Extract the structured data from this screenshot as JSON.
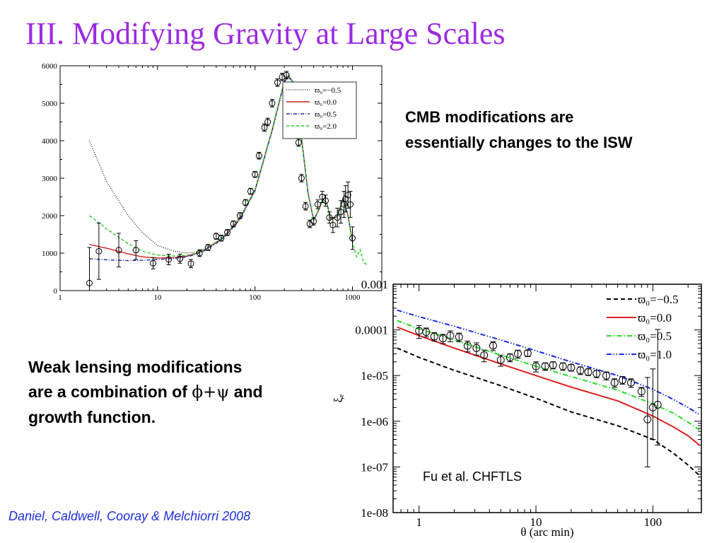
{
  "slide": {
    "title": "III. Modifying Gravity at Large Scales",
    "cmb_text": [
      "CMB modifications are",
      "essentially changes to the ISW"
    ],
    "wl_text": {
      "line1": "Weak lensing modifications",
      "line2_pre": "are a combination of ",
      "line2_sym": "ϕ+ψ",
      "line2_post": "  and",
      "line3": "growth function."
    },
    "citation": "Daniel, Caldwell, Cooray & Melchiorri 2008",
    "fu_label": "Fu et al. CHFTLS"
  },
  "chart_data": [
    {
      "type": "line",
      "xscale": "log",
      "xlim": [
        1,
        2000
      ],
      "ylim": [
        0,
        6000
      ],
      "x_ticks": [
        1,
        10,
        100,
        1000
      ],
      "x_tick_labels": [
        "1",
        "10",
        "100",
        "1000"
      ],
      "y_ticks": [
        0,
        1000,
        2000,
        3000,
        4000,
        5000,
        6000
      ],
      "y_tick_labels": [
        "0",
        "1000",
        "2000",
        "3000",
        "4000",
        "5000",
        "6000"
      ],
      "legend_position": "top-right",
      "series": [
        {
          "name": "ϖ₀=−0.5",
          "style": "dotted",
          "color": "#000000",
          "x": [
            2,
            3,
            5,
            7,
            10,
            15,
            20,
            25,
            30,
            40,
            50,
            70,
            100,
            150,
            200,
            220,
            250,
            300,
            350,
            400,
            450,
            500,
            550,
            600,
            700,
            800,
            900,
            1000
          ],
          "y": [
            4000,
            2900,
            2000,
            1550,
            1200,
            1050,
            1000,
            1030,
            1100,
            1300,
            1500,
            1950,
            2700,
            4300,
            5600,
            5750,
            5550,
            4100,
            2600,
            1900,
            2150,
            2450,
            2300,
            1900,
            2000,
            2450,
            2000,
            1300
          ]
        },
        {
          "name": "ϖ₀=0.0",
          "style": "solid",
          "color": "#cc1f1f",
          "x": [
            2,
            3,
            5,
            7,
            10,
            15,
            20,
            25,
            30,
            40,
            50,
            70,
            100,
            150,
            200,
            220,
            250,
            300,
            350,
            400,
            450,
            500,
            550,
            600,
            700,
            800,
            900,
            1000
          ],
          "y": [
            1230,
            1130,
            980,
            900,
            870,
            880,
            920,
            990,
            1080,
            1280,
            1480,
            1920,
            2680,
            4280,
            5580,
            5730,
            5530,
            4080,
            2600,
            1880,
            2150,
            2450,
            2300,
            1900,
            1980,
            2450,
            2000,
            1300
          ]
        },
        {
          "name": "ϖ₀=0.5",
          "style": "dashdot",
          "color": "#1a2bb0",
          "x": [
            2,
            3,
            5,
            7,
            10,
            15,
            20,
            25,
            30,
            40,
            50,
            70,
            100,
            150,
            200,
            220,
            250,
            300,
            350,
            400,
            450,
            500,
            550,
            600,
            700,
            800,
            900,
            1000
          ],
          "y": [
            850,
            820,
            800,
            810,
            830,
            860,
            900,
            970,
            1060,
            1260,
            1460,
            1900,
            2660,
            4260,
            5560,
            5710,
            5510,
            4060,
            2590,
            1870,
            2150,
            2450,
            2300,
            1900,
            1980,
            2450,
            2000,
            1300
          ]
        },
        {
          "name": "ϖ₀=2.0",
          "style": "dashed",
          "color": "#22cc22",
          "x": [
            2,
            3,
            5,
            7,
            10,
            15,
            20,
            25,
            30,
            40,
            50,
            70,
            100,
            150,
            200,
            220,
            250,
            300,
            350,
            400,
            450,
            500,
            550,
            600,
            700,
            800,
            900,
            1000,
            1100,
            1200,
            1300,
            1400
          ],
          "y": [
            2000,
            1650,
            1250,
            1050,
            950,
            920,
            940,
            1000,
            1090,
            1290,
            1490,
            1930,
            2690,
            4290,
            5590,
            5740,
            5540,
            4090,
            2610,
            1890,
            2160,
            2460,
            2310,
            1910,
            1990,
            2460,
            2010,
            1310,
            900,
            1100,
            750,
            700
          ]
        }
      ],
      "data_points": {
        "x": [
          2,
          2.5,
          4,
          6,
          9,
          13,
          17,
          22,
          27,
          33,
          40,
          45,
          52,
          60,
          70,
          80,
          90,
          100,
          110,
          125,
          135,
          150,
          170,
          190,
          210,
          230,
          250,
          280,
          300,
          330,
          365,
          400,
          440,
          490,
          530,
          580,
          630,
          700,
          760,
          820,
          850,
          900,
          950,
          1000
        ],
        "y": [
          200,
          1050,
          1080,
          1080,
          730,
          830,
          850,
          720,
          1000,
          1150,
          1450,
          1400,
          1550,
          1780,
          2000,
          2350,
          2650,
          3100,
          3600,
          4350,
          4500,
          5000,
          5550,
          5700,
          5750,
          5450,
          4850,
          3950,
          3000,
          2250,
          1780,
          1850,
          2300,
          2500,
          2400,
          1950,
          1750,
          1950,
          2100,
          2300,
          2450,
          2550,
          2300,
          1400
        ],
        "err": [
          950,
          750,
          450,
          250,
          150,
          140,
          120,
          110,
          90,
          80,
          80,
          80,
          80,
          80,
          80,
          80,
          80,
          80,
          90,
          100,
          100,
          100,
          100,
          100,
          100,
          100,
          100,
          100,
          100,
          100,
          100,
          100,
          120,
          150,
          150,
          150,
          200,
          250,
          300,
          350,
          350,
          350,
          350,
          300
        ]
      }
    },
    {
      "type": "line",
      "xscale": "log",
      "yscale": "log",
      "xlim": [
        0.6,
        260
      ],
      "ylim": [
        1e-08,
        0.001
      ],
      "xlabel": "θ (arc min)",
      "ylabel": "ξₑ",
      "x_ticks": [
        1,
        10,
        100
      ],
      "x_tick_labels": [
        "1",
        "10",
        "100"
      ],
      "y_ticks": [
        1e-08,
        1e-07,
        1e-06,
        1e-05,
        0.0001,
        0.001
      ],
      "y_tick_labels": [
        "1e-08",
        "1e-07",
        "1e-06",
        "1e-05",
        "0.0001",
        "0.001"
      ],
      "legend_position": "top-right",
      "series": [
        {
          "name": "ϖ₀=−0.5",
          "style": "dashed",
          "color": "#000000",
          "x": [
            0.65,
            1,
            2,
            5,
            10,
            20,
            50,
            100,
            150,
            200,
            250
          ],
          "y": [
            4e-05,
            2.5e-05,
            1.3e-05,
            6e-06,
            3.2e-06,
            1.6e-06,
            8e-07,
            4e-07,
            2e-07,
            1.1e-07,
            6.5e-08
          ]
        },
        {
          "name": "ϖ₀=0.0",
          "style": "solid",
          "color": "#e02020",
          "x": [
            0.65,
            1,
            2,
            5,
            10,
            20,
            50,
            100,
            150,
            200,
            250
          ],
          "y": [
            0.000115,
            7.5e-05,
            4e-05,
            1.8e-05,
            1e-05,
            5.6e-06,
            2.8e-06,
            1.3e-06,
            7.5e-07,
            4.8e-07,
            3e-07
          ]
        },
        {
          "name": "ϖ₀=0.5",
          "style": "dashdot",
          "color": "#22dd22",
          "x": [
            0.65,
            1,
            2,
            5,
            10,
            20,
            50,
            100,
            150,
            200,
            250
          ],
          "y": [
            0.00016,
            0.000105,
            6e-05,
            2.8e-05,
            1.6e-05,
            9.5e-06,
            4.8e-06,
            2.4e-06,
            1.5e-06,
            9.5e-07,
            6.5e-07
          ]
        },
        {
          "name": "ϖ₀=1.0",
          "style": "dashdotdot",
          "color": "#1a2be0",
          "x": [
            0.65,
            1,
            2,
            5,
            10,
            20,
            50,
            100,
            150,
            200,
            250
          ],
          "y": [
            0.00027,
            0.000195,
            0.00012,
            6e-05,
            3.5e-05,
            2e-05,
            1e-05,
            5e-06,
            3e-06,
            2e-06,
            1.4e-06
          ]
        }
      ],
      "data_points": {
        "x": [
          1,
          1.15,
          1.35,
          1.6,
          1.85,
          2.2,
          2.6,
          3.1,
          3.6,
          4.3,
          5,
          6,
          7,
          8.5,
          10,
          12,
          14,
          17,
          20,
          24,
          28,
          33,
          40,
          47,
          55,
          65,
          80,
          90,
          100,
          110
        ],
        "y": [
          9.5e-05,
          9e-05,
          7.2e-05,
          6.5e-05,
          7.5e-05,
          7e-05,
          4.5e-05,
          4e-05,
          2.8e-05,
          4.5e-05,
          2.2e-05,
          2.5e-05,
          3e-05,
          3.1e-05,
          1.6e-05,
          1.6e-05,
          1.7e-05,
          1.6e-05,
          1.5e-05,
          1.3e-05,
          1.2e-05,
          1.1e-05,
          1e-05,
          7e-06,
          8e-06,
          7e-06,
          4.5e-06,
          1.1e-06,
          2e-06,
          2.3e-06
        ],
        "err_lo": [
          3e-05,
          2e-05,
          1.5e-05,
          1.5e-05,
          2e-05,
          1.5e-05,
          1.2e-05,
          1.2e-05,
          8e-06,
          1e-05,
          6e-06,
          5e-06,
          6e-06,
          5e-06,
          4e-06,
          3e-06,
          3e-06,
          3e-06,
          2.5e-06,
          2.5e-06,
          2e-06,
          2e-06,
          2e-06,
          1.5e-06,
          1.5e-06,
          1.5e-06,
          1e-06,
          1e-06,
          1.6e-06,
          2e-06
        ],
        "err_hi": [
          3e-05,
          2e-05,
          1.5e-05,
          1.5e-05,
          2e-05,
          1.5e-05,
          1.2e-05,
          1.2e-05,
          8e-06,
          1e-05,
          6e-06,
          5e-06,
          6e-06,
          5e-06,
          4e-06,
          3e-06,
          3e-06,
          3e-06,
          2.5e-06,
          2.5e-06,
          2e-06,
          2e-06,
          2e-06,
          1.5e-06,
          1.5e-06,
          1.5e-06,
          1e-06,
          8e-06,
          1.2e-05,
          0.0001
        ]
      }
    }
  ]
}
